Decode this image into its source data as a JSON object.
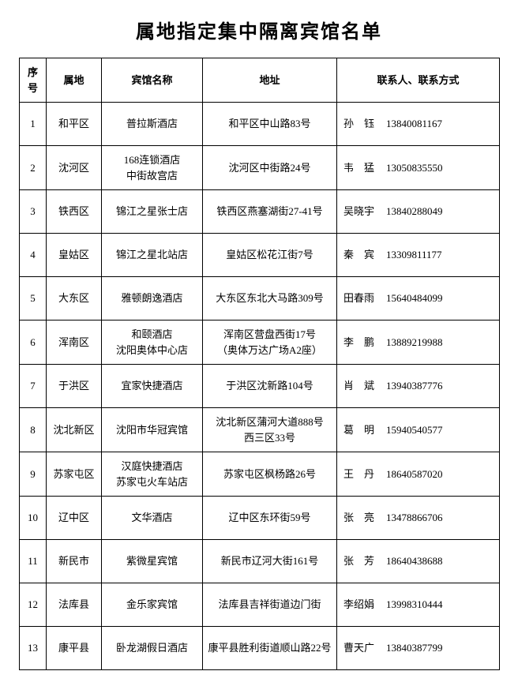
{
  "title": "属地指定集中隔离宾馆名单",
  "headers": {
    "index": "序号",
    "district": "属地",
    "hotel": "宾馆名称",
    "address": "地址",
    "contact": "联系人、联系方式"
  },
  "rows": [
    {
      "index": "1",
      "district": "和平区",
      "hotel": "普拉斯酒店",
      "address": "和平区中山路83号",
      "contact_name": "孙　钰",
      "contact_phone": "13840081167"
    },
    {
      "index": "2",
      "district": "沈河区",
      "hotel": "168连锁酒店\n中街故宫店",
      "address": "沈河区中街路24号",
      "contact_name": "韦　猛",
      "contact_phone": "13050835550"
    },
    {
      "index": "3",
      "district": "铁西区",
      "hotel": "锦江之星张士店",
      "address": "铁西区燕塞湖街27-41号",
      "contact_name": "吴晓宇",
      "contact_phone": "13840288049"
    },
    {
      "index": "4",
      "district": "皇姑区",
      "hotel": "锦江之星北站店",
      "address": "皇姑区松花江街7号",
      "contact_name": "秦　宾",
      "contact_phone": "13309811177"
    },
    {
      "index": "5",
      "district": "大东区",
      "hotel": "雅顿朗逸酒店",
      "address": "大东区东北大马路309号",
      "contact_name": "田春雨",
      "contact_phone": "15640484099"
    },
    {
      "index": "6",
      "district": "浑南区",
      "hotel": "和颐酒店\n沈阳奥体中心店",
      "address": "浑南区营盘西街17号\n（奥体万达广场A2座）",
      "contact_name": "李　鹏",
      "contact_phone": "13889219988"
    },
    {
      "index": "7",
      "district": "于洪区",
      "hotel": "宜家快捷酒店",
      "address": "于洪区沈新路104号",
      "contact_name": "肖　斌",
      "contact_phone": "13940387776"
    },
    {
      "index": "8",
      "district": "沈北新区",
      "hotel": "沈阳市华冠宾馆",
      "address": "沈北新区蒲河大道888号\n西三区33号",
      "contact_name": "葛　明",
      "contact_phone": "15940540577"
    },
    {
      "index": "9",
      "district": "苏家屯区",
      "hotel": "汉庭快捷酒店\n苏家屯火车站店",
      "address": "苏家屯区枫杨路26号",
      "contact_name": "王　丹",
      "contact_phone": "18640587020"
    },
    {
      "index": "10",
      "district": "辽中区",
      "hotel": "文华酒店",
      "address": "辽中区东环街59号",
      "contact_name": "张　亮",
      "contact_phone": "13478866706"
    },
    {
      "index": "11",
      "district": "新民市",
      "hotel": "紫微星宾馆",
      "address": "新民市辽河大街161号",
      "contact_name": "张　芳",
      "contact_phone": "18640438688"
    },
    {
      "index": "12",
      "district": "法库县",
      "hotel": "金乐家宾馆",
      "address": "法库县吉祥街道边门街",
      "contact_name": "李绍娟",
      "contact_phone": "13998310444"
    },
    {
      "index": "13",
      "district": "康平县",
      "hotel": "卧龙湖假日酒店",
      "address": "康平县胜利街道顺山路22号",
      "contact_name": "曹天广",
      "contact_phone": "13840387799"
    }
  ]
}
